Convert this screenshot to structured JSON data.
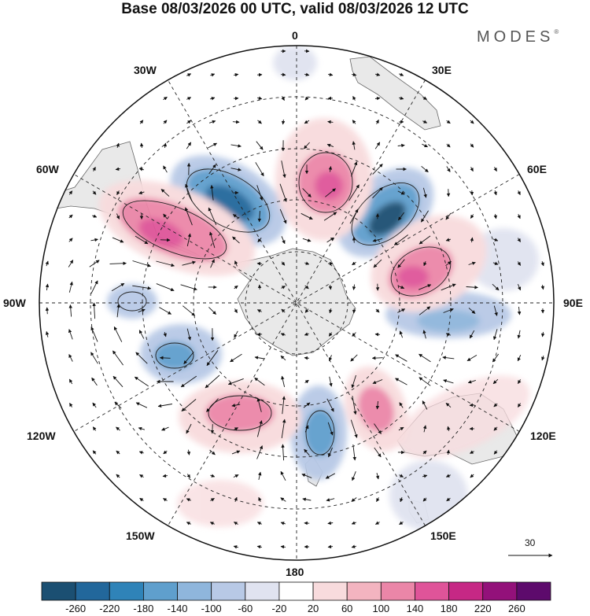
{
  "title": "Base 08/03/2026 00 UTC, valid 08/03/2026 12 UTC",
  "brand": "MODES",
  "brand_mark": "®",
  "longitudes": {
    "0": "0",
    "30E": "30E",
    "60E": "60E",
    "90E": "90E",
    "120E": "120E",
    "150E": "150E",
    "180": "180",
    "150W": "150W",
    "120W": "120W",
    "90W": "90W",
    "60W": "60W",
    "30W": "30W"
  },
  "reference_vector": "30",
  "colorbar": {
    "labels": [
      "-260",
      "-220",
      "-180",
      "-140",
      "-100",
      "-60",
      "-20",
      "20",
      "60",
      "100",
      "140",
      "180",
      "220",
      "260"
    ],
    "colors": [
      "#1b4f72",
      "#22679b",
      "#2f83b8",
      "#5f9fcd",
      "#8fb6dc",
      "#b8c9e6",
      "#e0e3f0",
      "#ffffff",
      "#f8dbdd",
      "#f3b4c0",
      "#eb86a8",
      "#df5499",
      "#c62885",
      "#93117a",
      "#5d0a6c"
    ]
  }
}
